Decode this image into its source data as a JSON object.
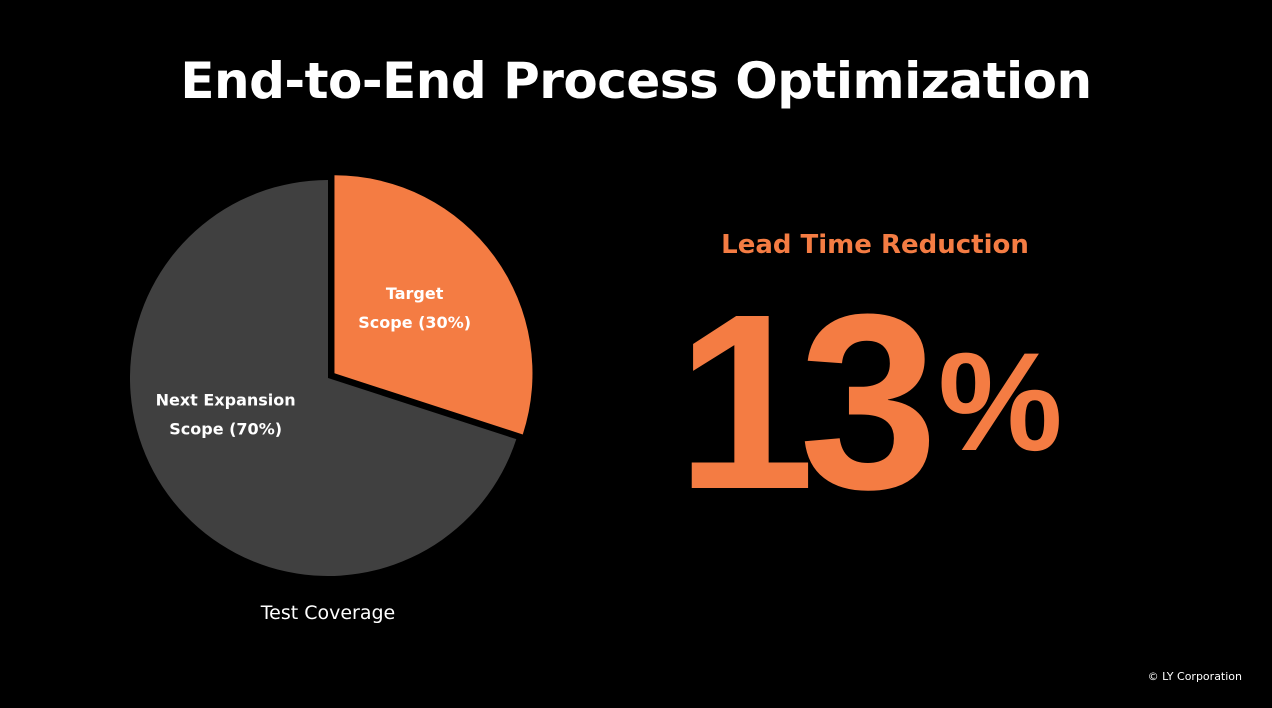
{
  "slide": {
    "title": "End-to-End Process Optimization",
    "footer": "© LY Corporation"
  },
  "chart_data": {
    "type": "pie",
    "title": "",
    "caption": "Test Coverage",
    "slices": [
      {
        "label_lines": [
          "Target",
          "Scope (30%)"
        ],
        "value": 30,
        "color": "#f47c43",
        "exploded": true
      },
      {
        "label_lines": [
          "Next Expansion",
          "Scope (70%)"
        ],
        "value": 70,
        "color": "#404040",
        "exploded": false
      }
    ],
    "start_angle": "12 o'clock, clockwise"
  },
  "metric": {
    "label": "Lead Time Reduction",
    "value": "13",
    "unit": "%",
    "color": "#f47c43"
  }
}
